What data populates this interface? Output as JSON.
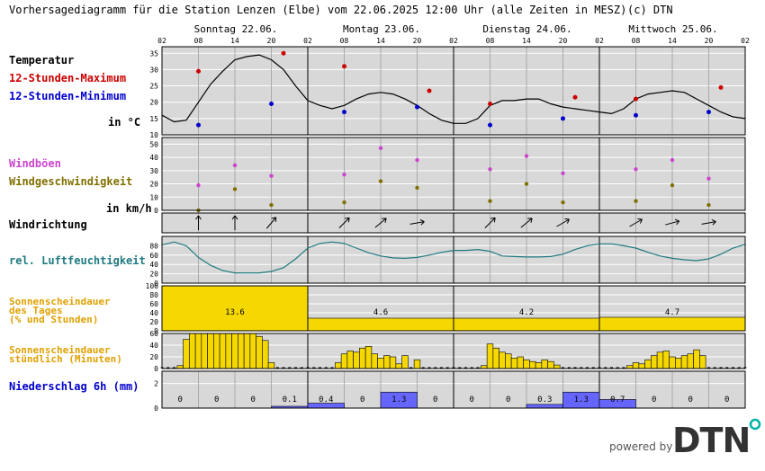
{
  "header": {
    "title": "Vorhersagediagramm für die Station Lenzen (Elbe) vom 22.06.2025 12:00 Uhr (alle Zeiten in MESZ)",
    "copyright": "(c) DTN"
  },
  "colors": {
    "tmax": "#cc0000",
    "tmin": "#0000cc",
    "gust": "#cc44cc",
    "wind": "#807000",
    "humidity": "#1f7a80",
    "sun": "#e0a000",
    "sun_fill": "#f5d800",
    "rain_text": "#0000cc",
    "rain_fill": "#6666ff",
    "panel": "#d8d8d8",
    "dtn_brand": "#333333",
    "dtn_accent": "#00b3a6"
  },
  "labels": {
    "temperatur": "Temperatur",
    "tmax": "12-Stunden-Maximum",
    "tmin": "12-Stunden-Minimum",
    "temp_unit": "in °C",
    "gust": "Windböen",
    "wind": "Windgeschwindigkeit",
    "wind_unit": "in km/h",
    "winddir": "Windrichtung",
    "humidity": "rel. Luftfeuchtigkeit",
    "sun_day_1": "Sonnenscheindauer",
    "sun_day_2": "des Tages",
    "sun_day_3": "(% und Stunden)",
    "sun_hour_1": "Sonnenscheindauer",
    "sun_hour_2": "stündlich (Minuten)",
    "rain": "Niederschlag 6h (mm)"
  },
  "days": [
    "Sonntag 22.06.",
    "Montag 23.06.",
    "Dienstag 24.06.",
    "Mittwoch 25.06."
  ],
  "hour_ticks": [
    "02",
    "08",
    "14",
    "20",
    "02",
    "08",
    "14",
    "20",
    "02",
    "08",
    "14",
    "20",
    "02",
    "08",
    "14",
    "20",
    "02"
  ],
  "footer": {
    "powered": "powered by",
    "logo": "DTN"
  },
  "chart_data": {
    "type": "line",
    "x_unit": "hours since 22.06. 02:00 MESZ",
    "temperature": {
      "ylim": [
        10,
        37
      ],
      "yticks": [
        10,
        15,
        20,
        25,
        30,
        35
      ],
      "curve_x": [
        0,
        2,
        4,
        6,
        8,
        10,
        12,
        14,
        16,
        18,
        20,
        22,
        24,
        26,
        28,
        30,
        32,
        34,
        36,
        38,
        40,
        42,
        44,
        46,
        48,
        50,
        52,
        54,
        56,
        58,
        60,
        62,
        64,
        66,
        68,
        70,
        72,
        74,
        76,
        78,
        80,
        82,
        84,
        86,
        88,
        90,
        92,
        94,
        96
      ],
      "curve_y": [
        16,
        14,
        14.5,
        20,
        25.5,
        29.5,
        33,
        34,
        34.5,
        33,
        30,
        25,
        20.5,
        19,
        18,
        19,
        21,
        22.5,
        23,
        22.5,
        21,
        19,
        16.5,
        14.5,
        13.5,
        13.5,
        15,
        19,
        20.5,
        20.5,
        21,
        21,
        19.5,
        18.5,
        18,
        17.5,
        17,
        16.5,
        18,
        21,
        22.5,
        23,
        23.5,
        23,
        21,
        19,
        17,
        15.5,
        15
      ],
      "max_x": [
        6,
        20,
        30,
        44,
        54,
        68,
        78,
        92
      ],
      "max_y": [
        29.5,
        35,
        31,
        23.5,
        19.5,
        21.5,
        21,
        24.5
      ],
      "min_x": [
        6,
        18,
        30,
        42,
        54,
        66,
        78,
        90
      ],
      "min_y": [
        13,
        19.5,
        17,
        18.5,
        13,
        15,
        16,
        17
      ]
    },
    "wind": {
      "ylim": [
        0,
        55
      ],
      "yticks": [
        0,
        10,
        20,
        30,
        40,
        50
      ],
      "x": [
        6,
        12,
        18,
        30,
        36,
        42,
        54,
        60,
        66,
        78,
        84,
        90
      ],
      "gusts": [
        19,
        34,
        26,
        27,
        47,
        38,
        31,
        41,
        28,
        31,
        38,
        24
      ],
      "speed": [
        0,
        16,
        4,
        6,
        22,
        17,
        7,
        20,
        6,
        7,
        19,
        4
      ]
    },
    "wind_direction": {
      "x": [
        6,
        12,
        18,
        30,
        36,
        42,
        54,
        60,
        66,
        78,
        84,
        90
      ],
      "direction_deg": [
        180,
        180,
        220,
        225,
        230,
        260,
        225,
        230,
        240,
        240,
        255,
        260
      ]
    },
    "humidity": {
      "ylim": [
        0,
        100
      ],
      "yticks": [
        0,
        20,
        40,
        60,
        80
      ],
      "x": [
        0,
        2,
        4,
        6,
        8,
        10,
        12,
        14,
        16,
        18,
        20,
        22,
        24,
        26,
        28,
        30,
        32,
        34,
        36,
        38,
        40,
        42,
        44,
        46,
        48,
        50,
        52,
        54,
        56,
        58,
        60,
        62,
        64,
        66,
        68,
        70,
        72,
        74,
        76,
        78,
        80,
        82,
        84,
        86,
        88,
        90,
        92,
        94,
        96
      ],
      "y": [
        82,
        88,
        80,
        55,
        38,
        27,
        22,
        22,
        22,
        25,
        33,
        52,
        75,
        85,
        88,
        85,
        75,
        65,
        58,
        54,
        53,
        55,
        60,
        66,
        70,
        70,
        72,
        68,
        58,
        57,
        56,
        56,
        57,
        62,
        72,
        80,
        84,
        84,
        80,
        75,
        66,
        58,
        53,
        50,
        48,
        52,
        62,
        75,
        83
      ]
    },
    "sunshine_daily": {
      "ylim": [
        0,
        100
      ],
      "yticks": [
        0,
        20,
        40,
        60,
        80,
        100
      ],
      "percent": [
        100,
        28,
        28,
        30
      ],
      "hours": [
        "13.6",
        "4.6",
        "4.2",
        "4.7"
      ]
    },
    "sunshine_hourly": {
      "ylim": [
        0,
        60
      ],
      "yticks": [
        0,
        20,
        40,
        60
      ],
      "hours_x": [
        0,
        1,
        2,
        3,
        4,
        5,
        6,
        7,
        8,
        9,
        10,
        11,
        12,
        13,
        14,
        15,
        16,
        17,
        18,
        19,
        20,
        21,
        22,
        23,
        24,
        25,
        26,
        27,
        28,
        29,
        30,
        31,
        32,
        33,
        34,
        35,
        36,
        37,
        38,
        39,
        40,
        41,
        42,
        43,
        44,
        45,
        46,
        47,
        48,
        49,
        50,
        51,
        52,
        53,
        54,
        55,
        56,
        57,
        58,
        59,
        60,
        61,
        62,
        63,
        64,
        65,
        66,
        67,
        68,
        69,
        70,
        71,
        72,
        73,
        74,
        75,
        76,
        77,
        78,
        79,
        80,
        81,
        82,
        83,
        84,
        85,
        86,
        87,
        88,
        89,
        90,
        91,
        92,
        93,
        94,
        95,
        96
      ],
      "minutes": [
        0,
        0,
        0,
        5,
        50,
        60,
        60,
        60,
        60,
        60,
        60,
        60,
        60,
        60,
        60,
        60,
        55,
        48,
        10,
        0,
        0,
        0,
        0,
        0,
        0,
        0,
        0,
        0,
        0,
        10,
        25,
        30,
        28,
        35,
        38,
        25,
        18,
        22,
        20,
        8,
        22,
        0,
        15,
        0,
        0,
        0,
        0,
        0,
        0,
        0,
        0,
        0,
        0,
        5,
        42,
        35,
        28,
        25,
        18,
        20,
        15,
        12,
        10,
        15,
        12,
        6,
        0,
        0,
        0,
        0,
        0,
        0,
        0,
        0,
        0,
        0,
        0,
        5,
        10,
        8,
        15,
        22,
        28,
        30,
        20,
        18,
        22,
        25,
        32,
        22,
        0,
        0,
        0,
        0,
        0,
        0,
        0
      ]
    },
    "precipitation_6h": {
      "ylim": [
        0,
        3
      ],
      "yticks": [
        0,
        2
      ],
      "values": [
        0,
        0,
        0,
        0.1,
        0.4,
        0,
        1.3,
        0,
        0,
        0,
        0.3,
        1.3,
        0.7,
        0,
        0,
        0
      ],
      "labels": [
        "0",
        "0",
        "0",
        "0.1",
        "0.4",
        "0",
        "1.3",
        "0",
        "0",
        "0",
        "0.3",
        "1.3",
        "0.7",
        "0",
        "0",
        "0"
      ]
    }
  }
}
